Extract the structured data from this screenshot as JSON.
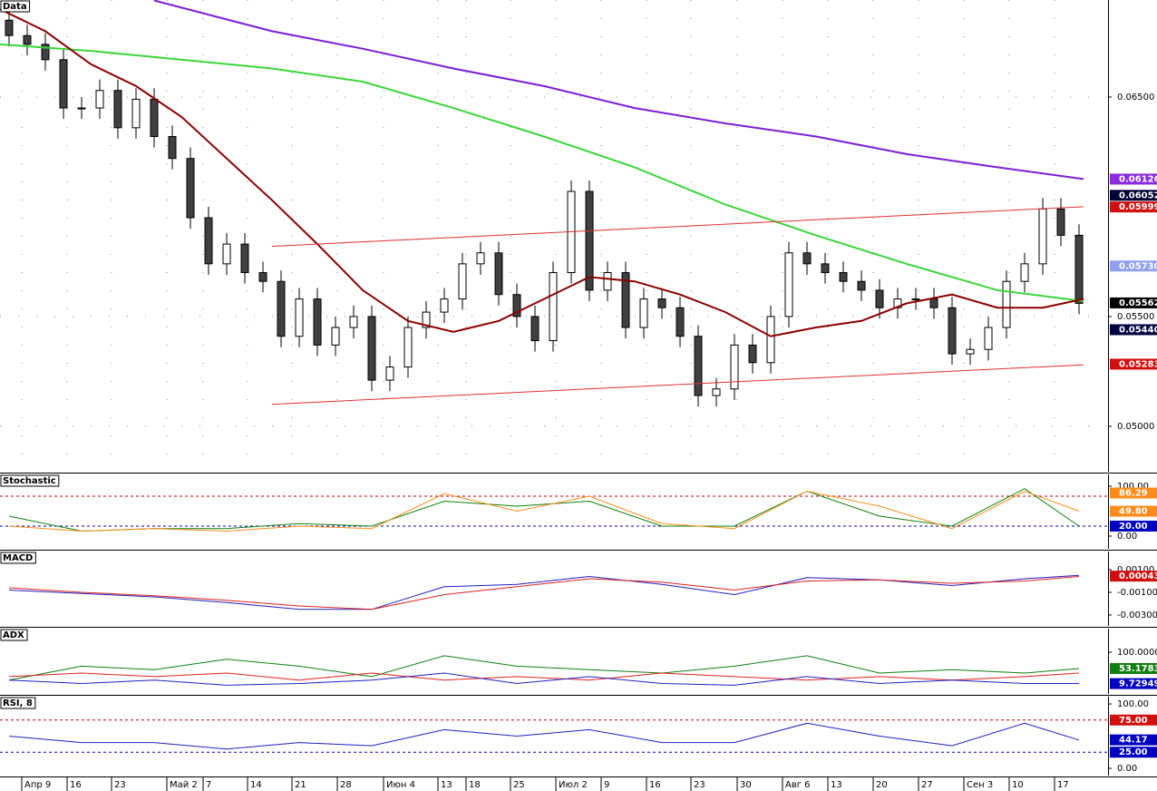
{
  "chart_data": [
    {
      "type": "candlestick",
      "title": "Data",
      "xlim": [
        -0.5,
        60.6
      ],
      "ylim": [
        0.04793,
        0.06942
      ],
      "grid": true,
      "xticks": [
        {
          "value": 0.7,
          "label": "Апр 9"
        },
        {
          "value": 3.2,
          "label": "16"
        },
        {
          "value": 5.65,
          "label": "23"
        },
        {
          "value": 8.7,
          "label": "Май 2"
        },
        {
          "value": 10.7,
          "label": "7"
        },
        {
          "value": 13.15,
          "label": "14"
        },
        {
          "value": 15.6,
          "label": "21"
        },
        {
          "value": 18.1,
          "label": "28"
        },
        {
          "value": 20.65,
          "label": "Июн 4"
        },
        {
          "value": 23.65,
          "label": "13"
        },
        {
          "value": 25.2,
          "label": "18"
        },
        {
          "value": 27.65,
          "label": "25"
        },
        {
          "value": 30.15,
          "label": "Июл 2"
        },
        {
          "value": 32.65,
          "label": "9"
        },
        {
          "value": 35.15,
          "label": "16"
        },
        {
          "value": 37.6,
          "label": "23"
        },
        {
          "value": 40.15,
          "label": "30"
        },
        {
          "value": 42.65,
          "label": "Авг 6"
        },
        {
          "value": 45.15,
          "label": "13"
        },
        {
          "value": 47.65,
          "label": "20"
        },
        {
          "value": 50.15,
          "label": "27"
        },
        {
          "value": 52.65,
          "label": "Сен 3"
        },
        {
          "value": 55.15,
          "label": "10"
        },
        {
          "value": 57.65,
          "label": "17"
        }
      ],
      "yticks": [
        {
          "value": 0.065,
          "label": "0.06500"
        },
        {
          "value": 0.055,
          "label": "0.05500"
        },
        {
          "value": 0.05,
          "label": "0.05000"
        }
      ],
      "up_color": "#ffffff",
      "down_color": "#404040",
      "x": [
        0,
        1,
        2,
        3,
        4,
        5,
        6,
        7,
        8,
        9,
        10,
        11,
        12,
        13,
        14,
        15,
        16,
        17,
        18,
        19,
        20,
        21,
        22,
        23,
        24,
        25,
        26,
        27,
        28,
        29,
        30,
        31,
        32,
        33,
        34,
        35,
        36,
        37,
        38,
        39,
        40,
        41,
        42,
        43,
        44,
        45,
        46,
        47,
        48,
        49,
        50,
        51,
        52,
        53,
        54,
        55,
        56,
        57,
        58,
        59
      ],
      "open": [
        0.0685,
        0.0678,
        0.0674,
        0.0667,
        0.0645,
        0.0645,
        0.0653,
        0.0636,
        0.0649,
        0.0632,
        0.0622,
        0.0595,
        0.0574,
        0.0583,
        0.057,
        0.0566,
        0.0541,
        0.0558,
        0.0537,
        0.0545,
        0.055,
        0.0521,
        0.0527,
        0.0545,
        0.0552,
        0.0558,
        0.0574,
        0.0579,
        0.056,
        0.055,
        0.0539,
        0.057,
        0.0607,
        0.0562,
        0.057,
        0.0545,
        0.0558,
        0.0554,
        0.0541,
        0.0514,
        0.0517,
        0.0537,
        0.0529,
        0.055,
        0.0579,
        0.0574,
        0.057,
        0.0566,
        0.0562,
        0.0554,
        0.0558,
        0.0558,
        0.0554,
        0.0533,
        0.0535,
        0.0545,
        0.0566,
        0.0574,
        0.0599,
        0.0587
      ],
      "high": [
        0.069,
        0.0683,
        0.0679,
        0.0672,
        0.065,
        0.0658,
        0.0658,
        0.0654,
        0.0654,
        0.0637,
        0.0627,
        0.06,
        0.0588,
        0.0588,
        0.0575,
        0.0571,
        0.0563,
        0.0563,
        0.055,
        0.0555,
        0.0555,
        0.0532,
        0.055,
        0.0557,
        0.0563,
        0.0579,
        0.0584,
        0.0584,
        0.0565,
        0.0555,
        0.0575,
        0.0612,
        0.0612,
        0.0575,
        0.0575,
        0.0563,
        0.0563,
        0.0559,
        0.0546,
        0.0522,
        0.0542,
        0.0542,
        0.0555,
        0.0584,
        0.0584,
        0.0579,
        0.0575,
        0.0571,
        0.0567,
        0.0563,
        0.0563,
        0.0563,
        0.0559,
        0.054,
        0.055,
        0.0571,
        0.0579,
        0.0604,
        0.0604,
        0.0592
      ],
      "low": [
        0.0673,
        0.0669,
        0.0662,
        0.064,
        0.064,
        0.064,
        0.0631,
        0.0631,
        0.0627,
        0.0617,
        0.059,
        0.0569,
        0.0569,
        0.0565,
        0.0561,
        0.0536,
        0.0536,
        0.0532,
        0.0532,
        0.054,
        0.0516,
        0.0516,
        0.0522,
        0.054,
        0.0547,
        0.0553,
        0.0569,
        0.0555,
        0.0545,
        0.0534,
        0.0534,
        0.0565,
        0.0557,
        0.0557,
        0.054,
        0.054,
        0.0549,
        0.0536,
        0.0509,
        0.0509,
        0.0512,
        0.0524,
        0.0524,
        0.0545,
        0.0569,
        0.0565,
        0.0561,
        0.0557,
        0.0549,
        0.0549,
        0.0553,
        0.0549,
        0.0528,
        0.0528,
        0.053,
        0.054,
        0.0561,
        0.0569,
        0.0582,
        0.0551
      ],
      "close": [
        0.0678,
        0.0674,
        0.0667,
        0.0645,
        0.0645,
        0.0653,
        0.0636,
        0.0649,
        0.0632,
        0.0622,
        0.0595,
        0.0574,
        0.0583,
        0.057,
        0.0566,
        0.0541,
        0.0558,
        0.0537,
        0.0545,
        0.055,
        0.0521,
        0.0527,
        0.0545,
        0.0552,
        0.0558,
        0.0574,
        0.0579,
        0.056,
        0.055,
        0.0539,
        0.057,
        0.0607,
        0.0562,
        0.057,
        0.0545,
        0.0558,
        0.0554,
        0.0541,
        0.0514,
        0.0517,
        0.0537,
        0.0529,
        0.055,
        0.0579,
        0.0574,
        0.057,
        0.0566,
        0.0562,
        0.0554,
        0.0558,
        0.0558,
        0.0554,
        0.0533,
        0.0535,
        0.0545,
        0.0566,
        0.0574,
        0.0599,
        0.0587,
        0.0556
      ],
      "series": [
        {
          "color": "#7a1fd6",
          "width": 2,
          "x": [
            8,
            14.5,
            19.5,
            24.5,
            29.5,
            34.5,
            39.5,
            44.5,
            49.5,
            54.5,
            59.25
          ],
          "values": [
            0.0694,
            0.068,
            0.0672,
            0.0663,
            0.0655,
            0.0645,
            0.0638,
            0.0632,
            0.0624,
            0.0618,
            0.06126
          ]
        },
        {
          "color": "#3ad63a",
          "width": 2,
          "x": [
            -0.5,
            4.5,
            9.5,
            14.5,
            19.5,
            24.5,
            29.5,
            34.5,
            39.5,
            44.5,
            49.5,
            54.5,
            59.25
          ],
          "values": [
            0.0674,
            0.0671,
            0.0667,
            0.0663,
            0.0657,
            0.0645,
            0.0632,
            0.0618,
            0.0601,
            0.0587,
            0.0574,
            0.0562,
            0.0557
          ]
        },
        {
          "color": "#8b0000",
          "width": 2,
          "x": [
            -0.5,
            2,
            4.5,
            7,
            9.5,
            12,
            14.5,
            17,
            19.5,
            22,
            24.5,
            27,
            29.5,
            32,
            34.5,
            37,
            39.5,
            42,
            44.5,
            47,
            49.5,
            52,
            54.5,
            57,
            59.25
          ],
          "values": [
            0.069,
            0.068,
            0.0665,
            0.0655,
            0.0641,
            0.0622,
            0.0603,
            0.0583,
            0.0562,
            0.0548,
            0.0543,
            0.0548,
            0.0558,
            0.0568,
            0.0566,
            0.056,
            0.0552,
            0.0541,
            0.0545,
            0.0548,
            0.0556,
            0.056,
            0.0554,
            0.0554,
            0.0558
          ]
        },
        {
          "color": "#e03030",
          "width": 1,
          "x": [
            14.5,
            59.25
          ],
          "values": [
            0.0582,
            0.06
          ]
        },
        {
          "color": "#e03030",
          "width": 1,
          "x": [
            14.5,
            59.25
          ],
          "values": [
            0.051,
            0.0528
          ]
        }
      ],
      "tags": [
        {
          "value": 0.06126,
          "label": "0.06126",
          "color": "#8a2be2"
        },
        {
          "value": 0.06052,
          "label": "0.06052",
          "color": "#000033"
        },
        {
          "value": 0.05999,
          "label": "0.05999",
          "color": "#d01010"
        },
        {
          "value": 0.0573,
          "label": "0.05730",
          "color": "#8fa0f0"
        },
        {
          "value": 0.05562,
          "label": "0.05562",
          "color": "#000000"
        },
        {
          "value": 0.0544,
          "label": "0.05440",
          "color": "#000040"
        },
        {
          "value": 0.05283,
          "label": "0.05283",
          "color": "#d01010"
        }
      ]
    },
    {
      "type": "line",
      "title": "Stochastic",
      "xlim": [
        -0.5,
        60.6
      ],
      "ylim": [
        -25.5,
        123.6
      ],
      "yticks": [
        {
          "value": 100,
          "label": "100.00"
        },
        {
          "value": 0,
          "label": "0.00"
        }
      ],
      "levels": [
        {
          "value": 80,
          "color": "#c00000"
        },
        {
          "value": 20,
          "color": "#0000c0"
        }
      ],
      "x": [
        0,
        4,
        8,
        12,
        16,
        20,
        24,
        28,
        32,
        36,
        40,
        44,
        48,
        52,
        56,
        59
      ],
      "series": [
        {
          "color": "#108010",
          "width": 1,
          "values": [
            40,
            10,
            15,
            15,
            25,
            20,
            70,
            60,
            70,
            20,
            20,
            90,
            40,
            20,
            95,
            20
          ]
        },
        {
          "color": "#ff8c1a",
          "width": 1,
          "values": [
            20,
            10,
            15,
            10,
            20,
            15,
            85,
            50,
            80,
            25,
            15,
            90,
            60,
            15,
            90,
            50
          ]
        }
      ],
      "tags": [
        {
          "value": 86.29,
          "label": "86.29",
          "color": "#ff8c1a"
        },
        {
          "value": 49.8,
          "label": "49.80",
          "color": "#ff8c1a"
        },
        {
          "value": 20,
          "label": "20.00",
          "color": "#0000c0"
        }
      ]
    },
    {
      "type": "line",
      "title": "MACD",
      "xlim": [
        -0.5,
        60.6
      ],
      "ylim": [
        -0.00396,
        0.0026
      ],
      "yticks": [
        {
          "value": 0.001,
          "label": "0.00100"
        },
        {
          "value": -0.001,
          "label": "-0.00100"
        },
        {
          "value": -0.003,
          "label": "-0.00300"
        }
      ],
      "x": [
        0,
        4,
        8,
        12,
        16,
        20,
        24,
        28,
        32,
        36,
        40,
        44,
        48,
        52,
        56,
        59
      ],
      "series": [
        {
          "color": "#2020c0",
          "width": 1,
          "values": [
            -0.0008,
            -0.0011,
            -0.0014,
            -0.0019,
            -0.0025,
            -0.0025,
            -0.0005,
            -0.0003,
            0.0004,
            -0.0003,
            -0.0012,
            0.0003,
            0.0001,
            -0.0004,
            0.0002,
            0.0005
          ]
        },
        {
          "color": "#e02020",
          "width": 1,
          "values": [
            -0.0006,
            -0.001,
            -0.0013,
            -0.0017,
            -0.0022,
            -0.0025,
            -0.0012,
            -0.0005,
            0.0002,
            -0.0001,
            -0.0008,
            0.0,
            0.0001,
            -0.0002,
            0.0,
            0.0004
          ]
        }
      ],
      "tags": [
        {
          "value": 0.00043,
          "label": "0.00043",
          "color": "#d01010"
        }
      ]
    },
    {
      "type": "line",
      "title": "ADX",
      "xlim": [
        -0.5,
        60.6
      ],
      "ylim": [
        -20,
        168
      ],
      "yticks": [
        {
          "value": 100,
          "label": "100.00000"
        }
      ],
      "x": [
        0,
        4,
        8,
        12,
        16,
        20,
        24,
        28,
        32,
        36,
        40,
        44,
        48,
        52,
        56,
        59
      ],
      "series": [
        {
          "color": "#108010",
          "width": 1,
          "values": [
            20,
            60,
            50,
            80,
            60,
            30,
            90,
            60,
            50,
            40,
            60,
            90,
            40,
            50,
            40,
            53
          ]
        },
        {
          "color": "#e02020",
          "width": 1,
          "values": [
            30,
            40,
            30,
            40,
            20,
            40,
            20,
            30,
            20,
            40,
            30,
            20,
            30,
            20,
            30,
            40
          ]
        },
        {
          "color": "#2020c0",
          "width": 1,
          "values": [
            20,
            10,
            20,
            5,
            10,
            20,
            40,
            10,
            30,
            10,
            5,
            30,
            10,
            20,
            10,
            10
          ]
        }
      ],
      "tags": [
        {
          "value": 53.17837,
          "label": "53.17837",
          "color": "#108010"
        },
        {
          "value": 9.72949,
          "label": "9.72949",
          "color": "#0000c0"
        }
      ]
    },
    {
      "type": "line",
      "title": "RSI, 8",
      "xlim": [
        -0.5,
        60.6
      ],
      "ylim": [
        -11.3,
        111.3
      ],
      "yticks": [
        {
          "value": 100,
          "label": "100.00"
        },
        {
          "value": 0,
          "label": "0.00"
        }
      ],
      "levels": [
        {
          "value": 75,
          "color": "#c00000"
        },
        {
          "value": 25,
          "color": "#0000c0"
        }
      ],
      "x": [
        0,
        4,
        8,
        12,
        16,
        20,
        24,
        28,
        32,
        36,
        40,
        44,
        48,
        52,
        56,
        59
      ],
      "series": [
        {
          "color": "#2020c0",
          "width": 1,
          "values": [
            50,
            40,
            40,
            30,
            40,
            35,
            60,
            50,
            60,
            40,
            40,
            70,
            50,
            35,
            70,
            44
          ]
        }
      ],
      "tags": [
        {
          "value": 75,
          "label": "75.00",
          "color": "#d01010"
        },
        {
          "value": 44.17,
          "label": "44.17",
          "color": "#0000c0"
        },
        {
          "value": 25,
          "label": "25.00",
          "color": "#0000c0"
        }
      ]
    }
  ]
}
